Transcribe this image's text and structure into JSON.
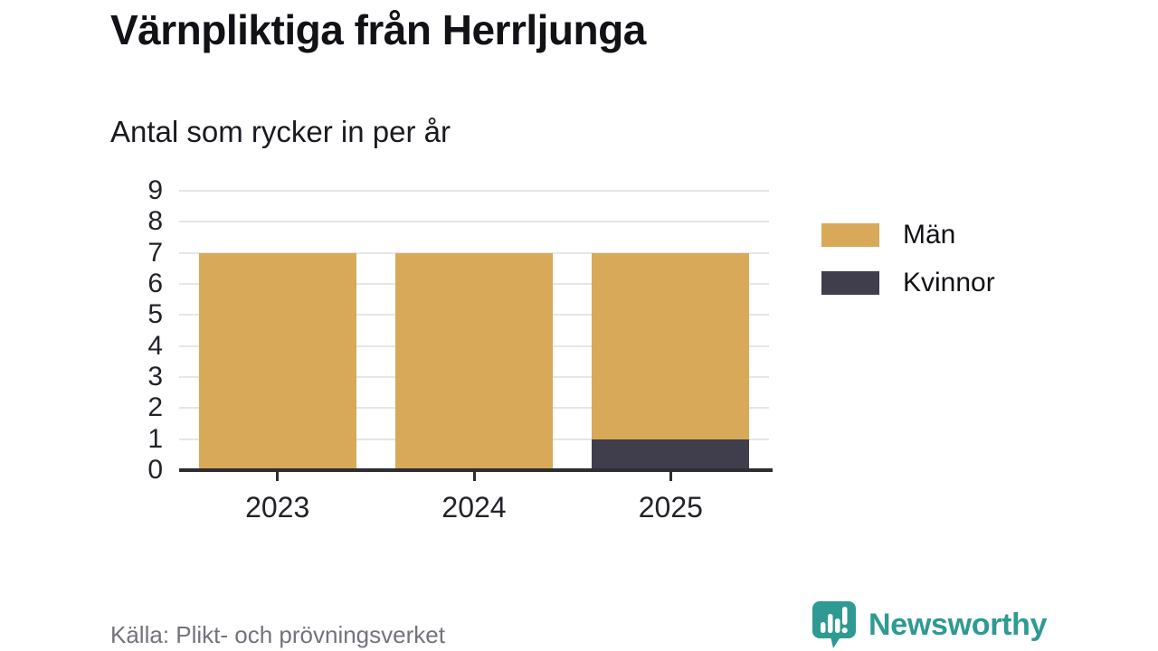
{
  "header": {
    "title": "Värnpliktiga från Herrljunga",
    "subtitle": "Antal som rycker in per år"
  },
  "chart_data": {
    "type": "bar",
    "stacked": true,
    "categories": [
      "2023",
      "2024",
      "2025"
    ],
    "series": [
      {
        "name": "Män",
        "color": "#d8a958",
        "values": [
          7,
          7,
          6
        ]
      },
      {
        "name": "Kvinnor",
        "color": "#403e4c",
        "values": [
          0,
          0,
          1
        ]
      }
    ],
    "title": "Värnpliktiga från Herrljunga",
    "subtitle": "Antal som rycker in per år",
    "xlabel": "",
    "ylabel": "",
    "ylim": [
      0,
      9
    ],
    "yticks": [
      0,
      1,
      2,
      3,
      4,
      5,
      6,
      7,
      8,
      9
    ],
    "grid": true,
    "legend_position": "right",
    "stack_order_bottom_to_top": [
      "Kvinnor",
      "Män"
    ]
  },
  "colors": {
    "men": "#d8a958",
    "women": "#403e4c",
    "grid": "#e6e6e8",
    "axis": "#2e2d33",
    "muted_text": "#73737d",
    "brand_teal": "#2f9a92"
  },
  "footer": {
    "source": "Källa: Plikt- och prövningsverket",
    "brand_name": "Newsworthy"
  }
}
